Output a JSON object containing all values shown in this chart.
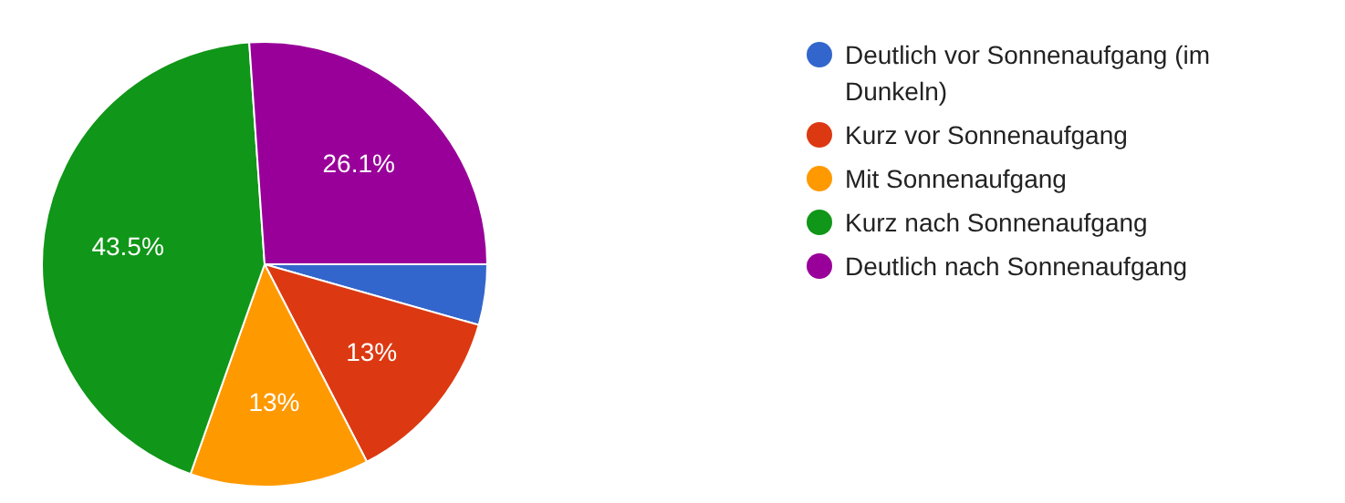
{
  "chart_data": {
    "type": "pie",
    "categories": [
      "Deutlich vor Sonnenaufgang (im Dunkeln)",
      "Kurz vor Sonnenaufgang",
      "Mit Sonnenaufgang",
      "Kurz nach Sonnenaufgang",
      "Deutlich nach Sonnenaufgang"
    ],
    "values": [
      4.4,
      13,
      13,
      43.5,
      26.1
    ],
    "colors": [
      "#3366cc",
      "#dc3912",
      "#ff9900",
      "#109618",
      "#990099"
    ],
    "value_labels": [
      null,
      "13%",
      "13%",
      "43.5%",
      "26.1%"
    ],
    "legend": "right"
  }
}
